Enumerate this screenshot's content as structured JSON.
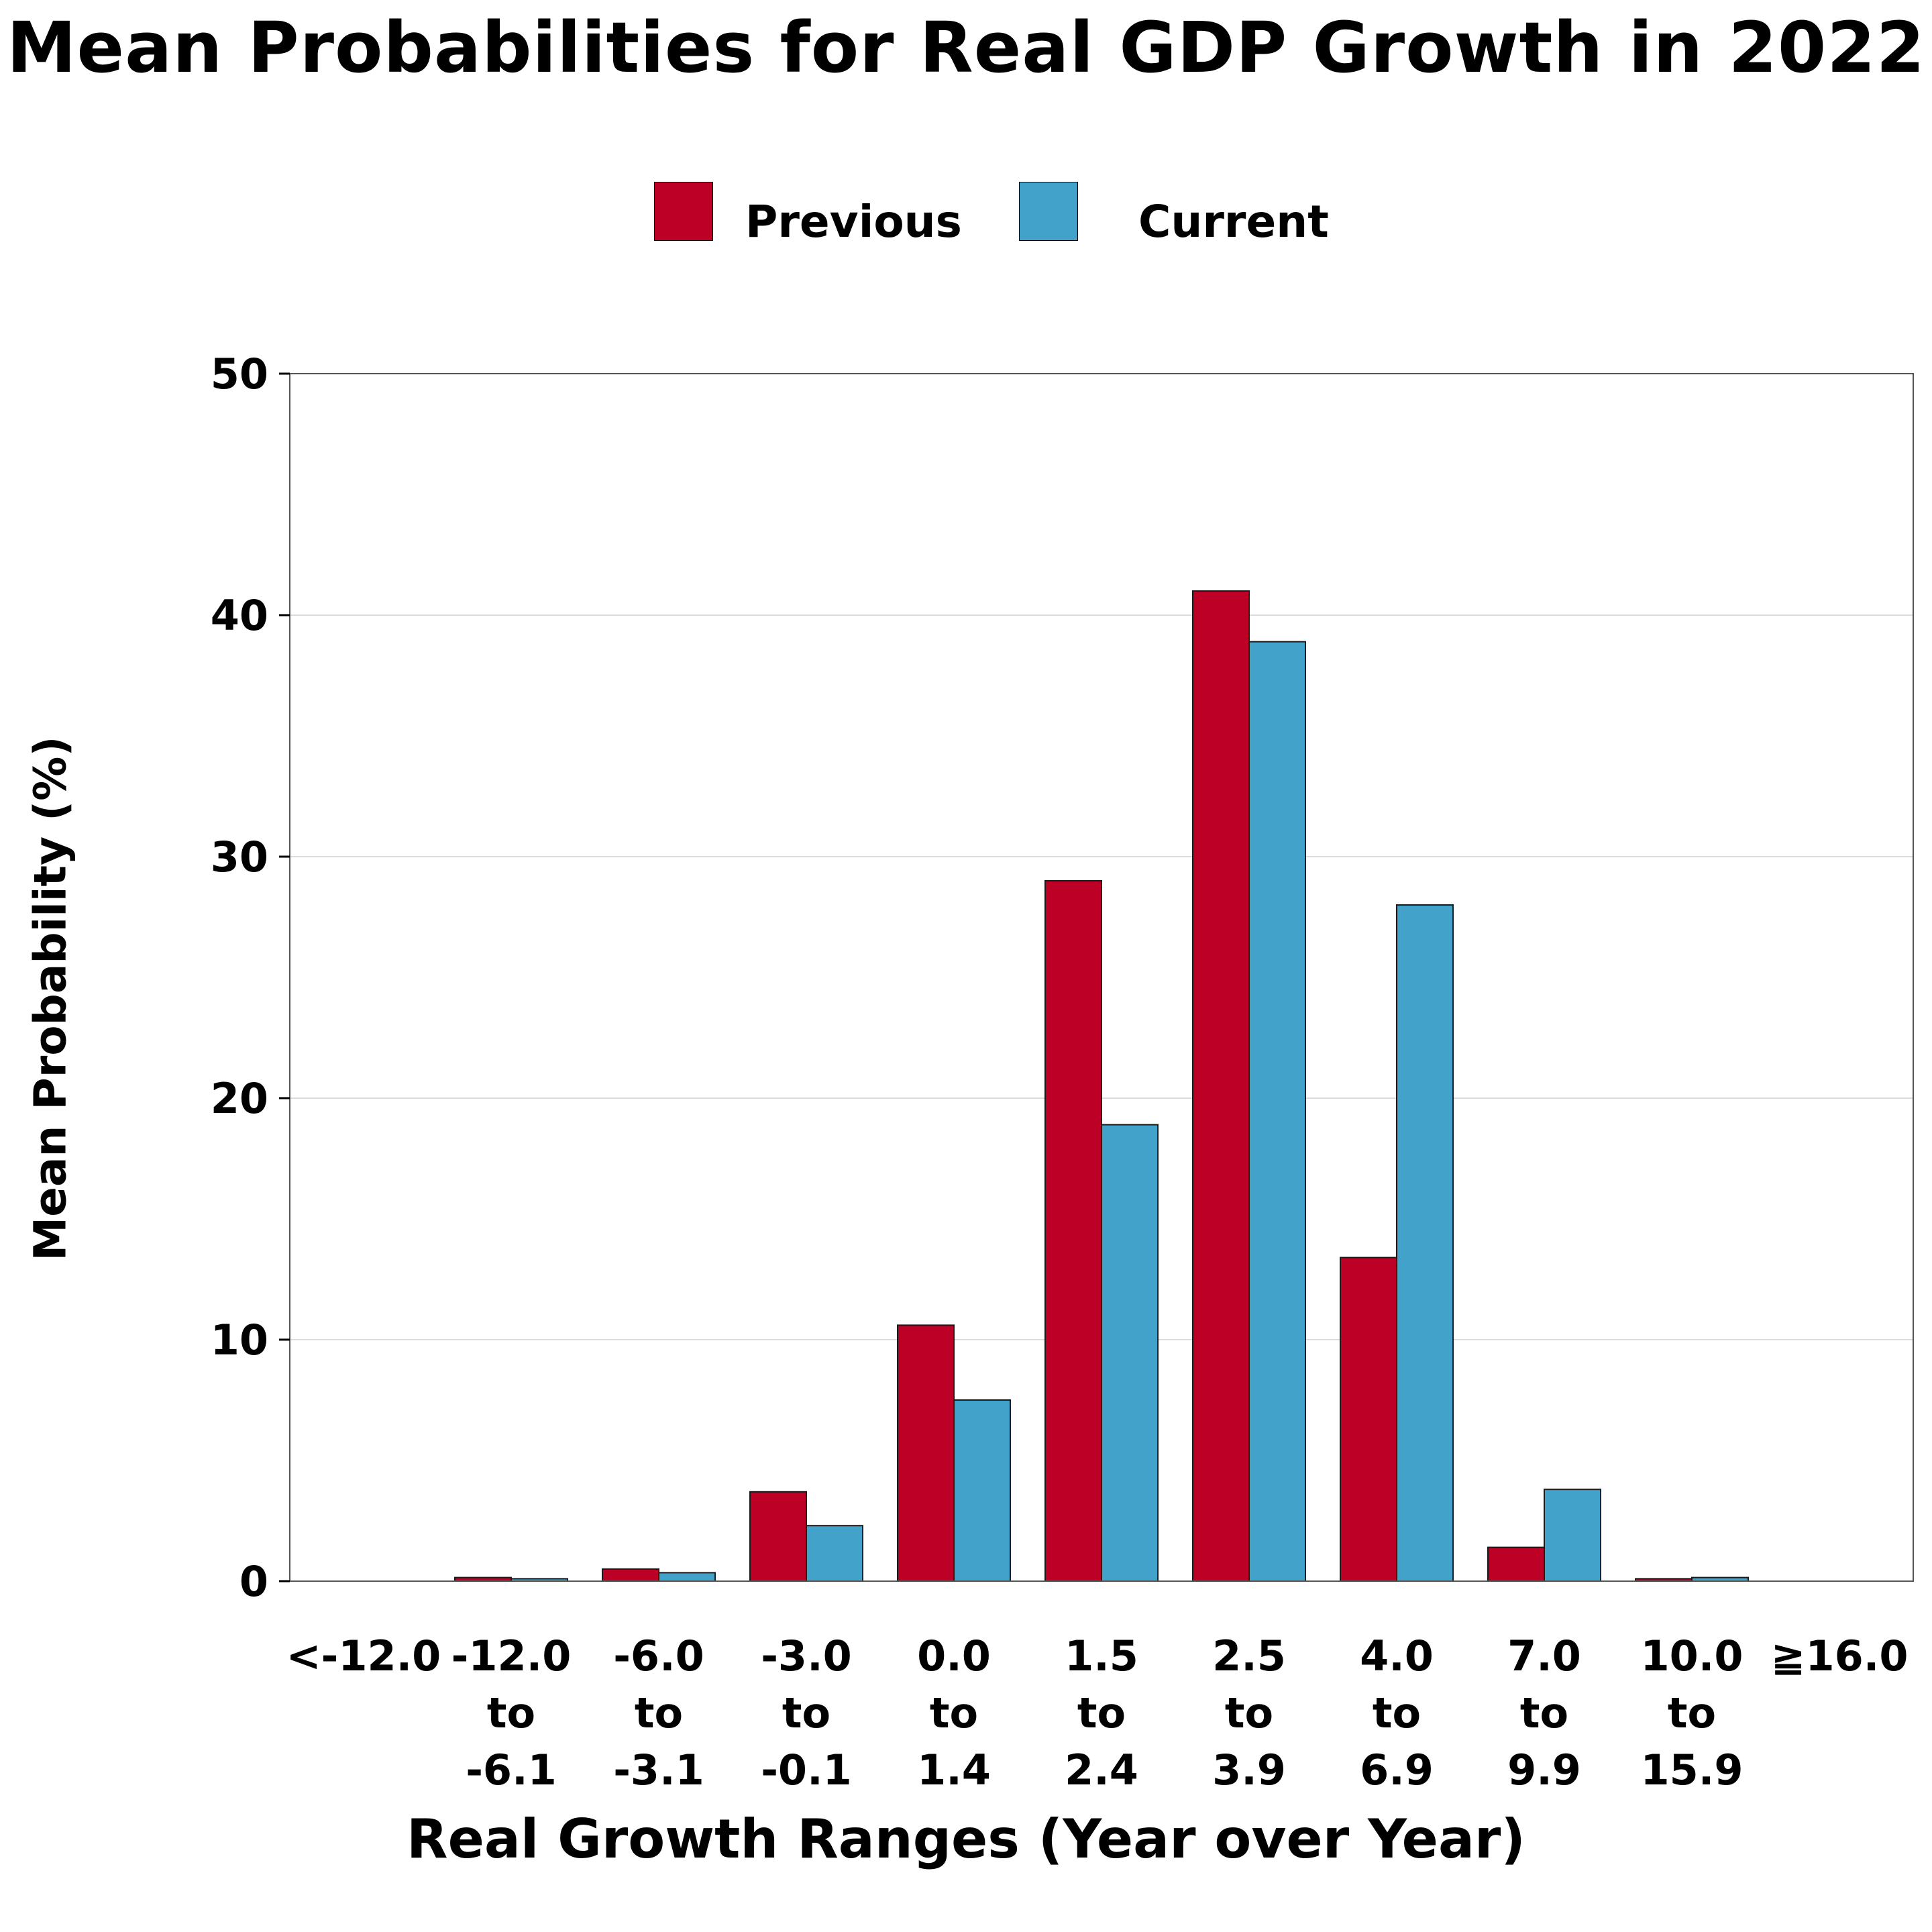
{
  "chart_data": {
    "type": "bar",
    "title": "Mean Probabilities for Real GDP Growth in 2022",
    "xlabel": "Real Growth Ranges (Year over Year)",
    "ylabel": "Mean Probability (%)",
    "ylim": [
      0,
      50
    ],
    "yticks": [
      0,
      10,
      20,
      30,
      40,
      50
    ],
    "grid": "horizontal",
    "legend_position": "top",
    "categories": [
      [
        "<-12.0"
      ],
      [
        "-12.0",
        "to",
        "-6.1"
      ],
      [
        "-6.0",
        "to",
        "-3.1"
      ],
      [
        "-3.0",
        "to",
        "-0.1"
      ],
      [
        "0.0",
        "to",
        "1.4"
      ],
      [
        "1.5",
        "to",
        "2.4"
      ],
      [
        "2.5",
        "to",
        "3.9"
      ],
      [
        "4.0",
        "to",
        "6.9"
      ],
      [
        "7.0",
        "to",
        "9.9"
      ],
      [
        "10.0",
        "to",
        "15.9"
      ],
      [
        "≧16.0"
      ]
    ],
    "series": [
      {
        "name": "Previous",
        "color": "#BD0026",
        "values": [
          0.0,
          0.15,
          0.5,
          3.7,
          10.6,
          29.0,
          41.0,
          13.4,
          1.4,
          0.1,
          0.0
        ]
      },
      {
        "name": "Current",
        "color": "#43A2CA",
        "values": [
          0.0,
          0.1,
          0.35,
          2.3,
          7.5,
          18.9,
          38.9,
          28.0,
          3.8,
          0.15,
          0.0
        ]
      }
    ]
  }
}
